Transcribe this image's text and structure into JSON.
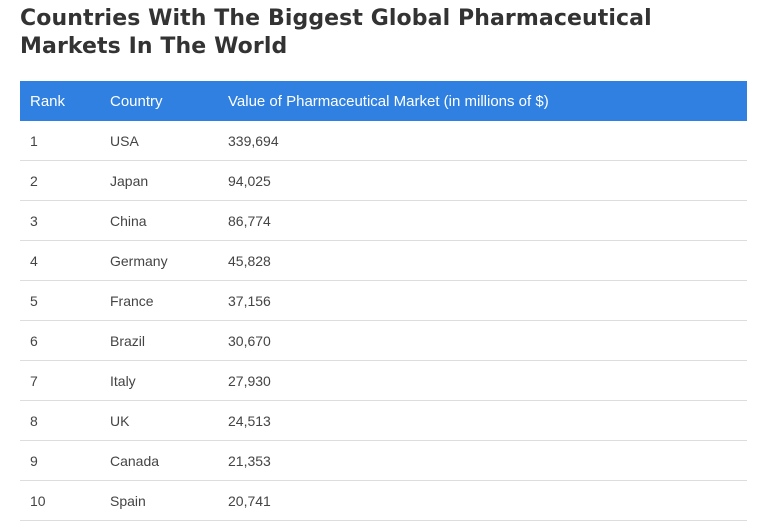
{
  "title": "Countries With The Biggest Global Pharmaceutical Markets In The World",
  "accent_color": "#2f80e0",
  "table": {
    "headers": {
      "rank": "Rank",
      "country": "Country",
      "value": "Value of Pharmaceutical Market (in millions of $)"
    },
    "rows": [
      {
        "rank": "1",
        "country": "USA",
        "value": "339,694"
      },
      {
        "rank": "2",
        "country": "Japan",
        "value": "94,025"
      },
      {
        "rank": "3",
        "country": "China",
        "value": "86,774"
      },
      {
        "rank": "4",
        "country": "Germany",
        "value": "45,828"
      },
      {
        "rank": "5",
        "country": "France",
        "value": "37,156"
      },
      {
        "rank": "6",
        "country": "Brazil",
        "value": "30,670"
      },
      {
        "rank": "7",
        "country": "Italy",
        "value": "27,930"
      },
      {
        "rank": "8",
        "country": "UK",
        "value": "24,513"
      },
      {
        "rank": "9",
        "country": "Canada",
        "value": "21,353"
      },
      {
        "rank": "10",
        "country": "Spain",
        "value": "20,741"
      }
    ]
  }
}
